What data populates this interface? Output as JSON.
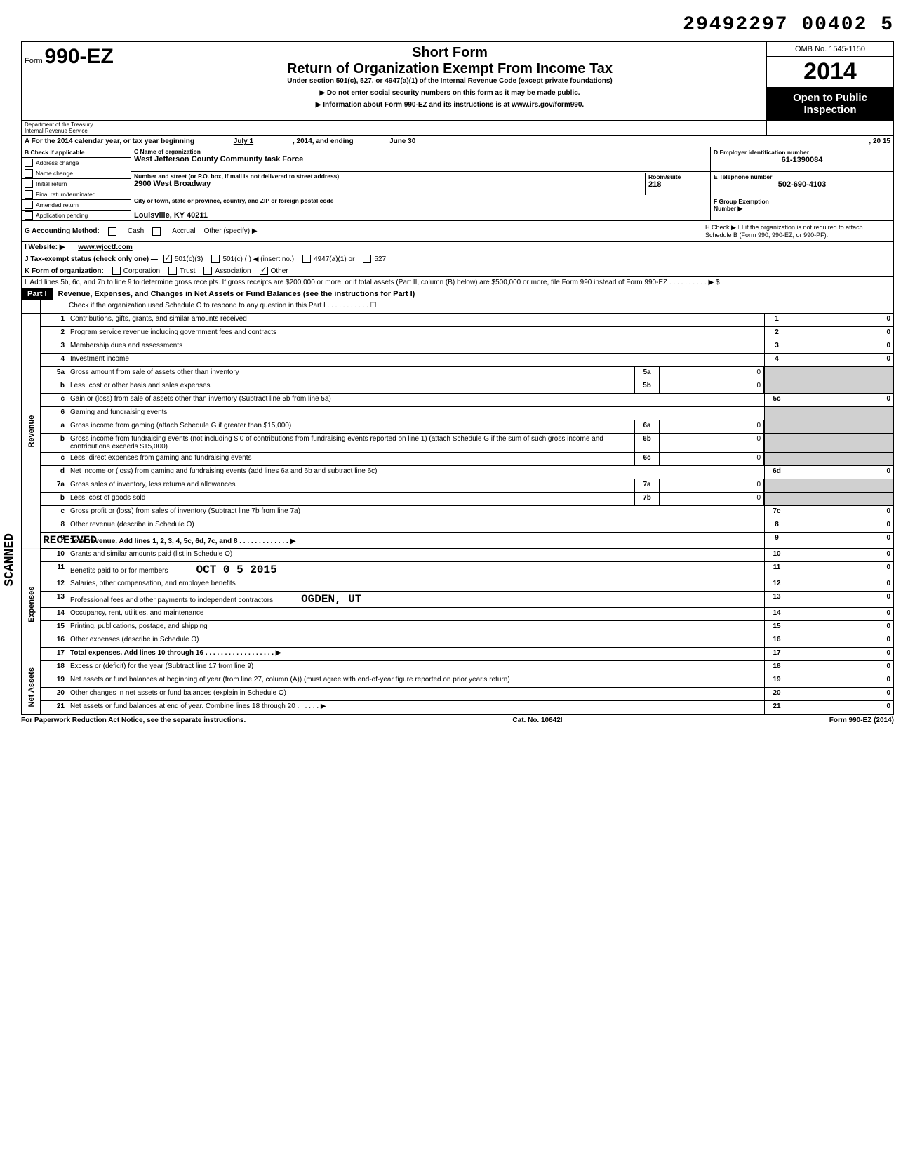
{
  "header_id": "29492297 00402 5",
  "form": {
    "prefix": "Form",
    "number": "990-EZ",
    "short_form": "Short Form",
    "title": "Return of Organization Exempt From Income Tax",
    "under": "Under section 501(c), 527, or 4947(a)(1) of the Internal Revenue Code (except private foundations)",
    "warn": "▶ Do not enter social security numbers on this form as it may be made public.",
    "info": "▶ Information about Form 990-EZ and its instructions is at www.irs.gov/form990.",
    "dept1": "Department of the Treasury",
    "dept2": "Internal Revenue Service",
    "omb": "OMB No. 1545-1150",
    "year": "2014",
    "inspection1": "Open to Public",
    "inspection2": "Inspection"
  },
  "line_a": {
    "text": "A For the 2014 calendar year, or tax year beginning",
    "begin": "July 1",
    "mid": ", 2014, and ending",
    "end_month": "June 30",
    "end_year": ", 20  15"
  },
  "section_b": {
    "header": "B Check if applicable",
    "items": [
      "Address change",
      "Name change",
      "Initial return",
      "Final return/terminated",
      "Amended return",
      "Application pending"
    ]
  },
  "section_c": {
    "name_label": "C Name of organization",
    "name": "West Jefferson County Community task Force",
    "addr_label": "Number and street (or P.O. box, if mail is not delivered to street address)",
    "addr": "2900 West Broadway",
    "room_label": "Room/suite",
    "room": "218",
    "city_label": "City or town, state or province, country, and ZIP or foreign postal code",
    "city": "Louisville, KY 40211"
  },
  "section_d": {
    "label": "D Employer identification number",
    "value": "61-1390084"
  },
  "section_e": {
    "label": "E Telephone number",
    "value": "502-690-4103"
  },
  "section_f": {
    "label": "F Group Exemption",
    "label2": "Number ▶"
  },
  "section_g": {
    "label": "G Accounting Method:",
    "cash": "Cash",
    "accrual": "Accrual",
    "other": "Other (specify) ▶"
  },
  "section_h": {
    "text": "H Check ▶ ☐ if the organization is not required to attach Schedule B (Form 990, 990-EZ, or 990-PF)."
  },
  "section_i": {
    "label": "I Website: ▶",
    "value": "www.wjcctf.com"
  },
  "section_j": {
    "label": "J Tax-exempt status (check only one) —",
    "opt1": "501(c)(3)",
    "opt2": "501(c) (      ) ◀ (insert no.)",
    "opt3": "4947(a)(1) or",
    "opt4": "527"
  },
  "section_k": {
    "label": "K Form of organization:",
    "corp": "Corporation",
    "trust": "Trust",
    "assoc": "Association",
    "other": "Other"
  },
  "section_l": {
    "text": "L Add lines 5b, 6c, and 7b to line 9 to determine gross receipts. If gross receipts are $200,000 or more, or if total assets (Part II, column (B) below) are $500,000 or more, file Form 990 instead of Form 990-EZ . . . . . . . . . . ▶  $"
  },
  "part1": {
    "label": "Part I",
    "title": "Revenue, Expenses, and Changes in Net Assets or Fund Balances (see the instructions for Part I)",
    "check": "Check if the organization used Schedule O to respond to any question in this Part I . . . . . . . . . . . ☐"
  },
  "vert_labels": {
    "revenue": "Revenue",
    "expenses": "Expenses",
    "netassets": "Net Assets"
  },
  "lines": [
    {
      "num": "1",
      "text": "Contributions, gifts, grants, and similar amounts received",
      "endnum": "1",
      "endval": "0"
    },
    {
      "num": "2",
      "text": "Program service revenue including government fees and contracts",
      "endnum": "2",
      "endval": "0"
    },
    {
      "num": "3",
      "text": "Membership dues and assessments",
      "endnum": "3",
      "endval": "0"
    },
    {
      "num": "4",
      "text": "Investment income",
      "endnum": "4",
      "endval": "0"
    },
    {
      "num": "5a",
      "text": "Gross amount from sale of assets other than inventory",
      "subnum": "5a",
      "subval": "0",
      "shaded_end": true
    },
    {
      "num": "b",
      "text": "Less: cost or other basis and sales expenses",
      "subnum": "5b",
      "subval": "0",
      "shaded_end": true
    },
    {
      "num": "c",
      "text": "Gain or (loss) from sale of assets other than inventory (Subtract line 5b from line 5a)",
      "endnum": "5c",
      "endval": "0"
    },
    {
      "num": "6",
      "text": "Gaming and fundraising events",
      "shaded_end": true,
      "shaded_sub": true
    },
    {
      "num": "a",
      "text": "Gross income from gaming (attach Schedule G if greater than $15,000)",
      "subnum": "6a",
      "subval": "0",
      "shaded_end": true
    },
    {
      "num": "b",
      "text": "Gross income from fundraising events (not including  $                0 of contributions from fundraising events reported on line 1) (attach Schedule G if the sum of such gross income and contributions exceeds $15,000)",
      "subnum": "6b",
      "subval": "0",
      "shaded_end": true
    },
    {
      "num": "c",
      "text": "Less: direct expenses from gaming and fundraising events",
      "subnum": "6c",
      "subval": "0",
      "shaded_end": true
    },
    {
      "num": "d",
      "text": "Net income or (loss) from gaming and fundraising events (add lines 6a and 6b and subtract line 6c)",
      "endnum": "6d",
      "endval": "0"
    },
    {
      "num": "7a",
      "text": "Gross sales of inventory, less returns and allowances",
      "subnum": "7a",
      "subval": "0",
      "shaded_end": true
    },
    {
      "num": "b",
      "text": "Less: cost of goods sold",
      "subnum": "7b",
      "subval": "0",
      "shaded_end": true
    },
    {
      "num": "c",
      "text": "Gross profit or (loss) from sales of inventory (Subtract line 7b from line 7a)",
      "endnum": "7c",
      "endval": "0"
    },
    {
      "num": "8",
      "text": "Other revenue (describe in Schedule O)",
      "endnum": "8",
      "endval": "0"
    },
    {
      "num": "9",
      "text": "Total revenue. Add lines 1, 2, 3, 4, 5c, 6d, 7c, and 8  . . . . . . . . . . . . . ▶",
      "endnum": "9",
      "endval": "0",
      "bold": true
    },
    {
      "num": "10",
      "text": "Grants and similar amounts paid (list in Schedule O)",
      "endnum": "10",
      "endval": "0"
    },
    {
      "num": "11",
      "text": "Benefits paid to or for members",
      "endnum": "11",
      "endval": "0"
    },
    {
      "num": "12",
      "text": "Salaries, other compensation, and employee benefits",
      "endnum": "12",
      "endval": "0"
    },
    {
      "num": "13",
      "text": "Professional fees and other payments to independent contractors",
      "endnum": "13",
      "endval": "0"
    },
    {
      "num": "14",
      "text": "Occupancy, rent, utilities, and maintenance",
      "endnum": "14",
      "endval": "0"
    },
    {
      "num": "15",
      "text": "Printing, publications, postage, and shipping",
      "endnum": "15",
      "endval": "0"
    },
    {
      "num": "16",
      "text": "Other expenses (describe in Schedule O)",
      "endnum": "16",
      "endval": "0"
    },
    {
      "num": "17",
      "text": "Total expenses. Add lines 10 through 16 . . . . . . . . . . . . . . . . . . ▶",
      "endnum": "17",
      "endval": "0",
      "bold": true
    },
    {
      "num": "18",
      "text": "Excess or (deficit) for the year (Subtract line 17 from line 9)",
      "endnum": "18",
      "endval": "0"
    },
    {
      "num": "19",
      "text": "Net assets or fund balances at beginning of year (from line 27, column (A)) (must agree with end-of-year figure reported on prior year's return)",
      "endnum": "19",
      "endval": "0"
    },
    {
      "num": "20",
      "text": "Other changes in net assets or fund balances (explain in Schedule O)",
      "endnum": "20",
      "endval": "0"
    },
    {
      "num": "21",
      "text": "Net assets or fund balances at end of year. Combine lines 18 through 20 . . . . . . ▶",
      "endnum": "21",
      "endval": "0"
    }
  ],
  "stamps": {
    "received": "RECEIVED",
    "date": "OCT 0 5 2015",
    "ogden": "OGDEN, UT"
  },
  "footer": {
    "left": "For Paperwork Reduction Act Notice, see the separate instructions.",
    "mid": "Cat. No. 10642I",
    "right": "Form 990-EZ (2014)"
  },
  "side": "SCANNED"
}
